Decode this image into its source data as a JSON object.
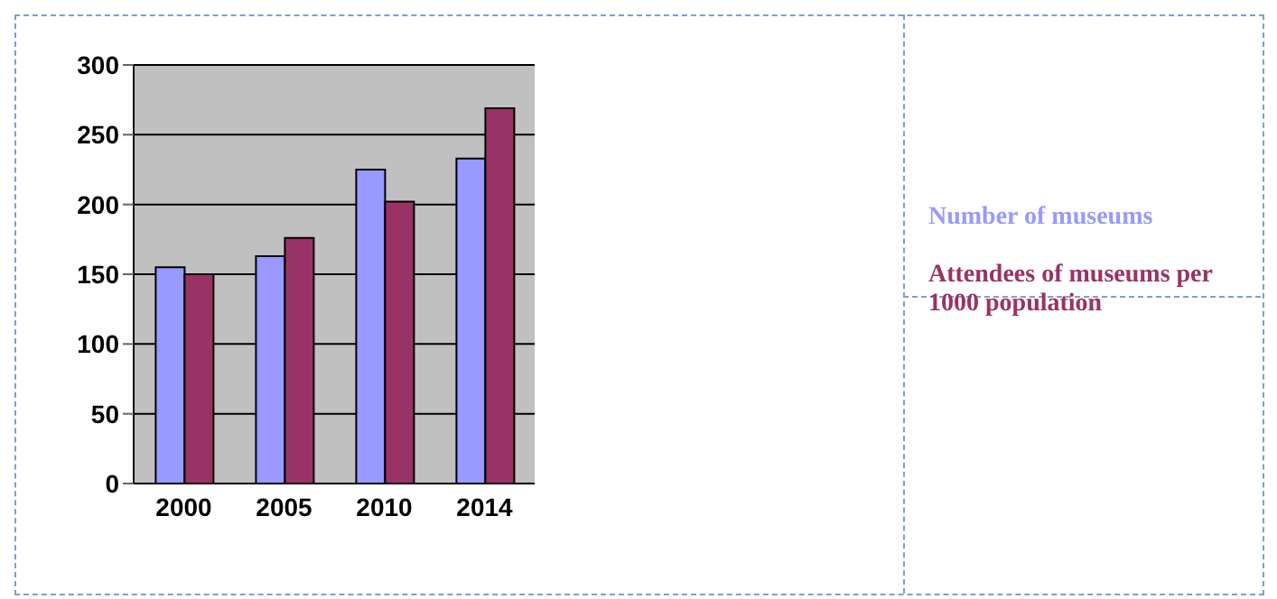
{
  "chart_data": {
    "type": "bar",
    "categories": [
      "2000",
      "2005",
      "2010",
      "2014"
    ],
    "series": [
      {
        "name": "Number of museums",
        "color": "#9999ff",
        "values": [
          155,
          163,
          225,
          233
        ]
      },
      {
        "name": "Attendees of museums per 1000  population",
        "color": "#993366",
        "values": [
          150,
          176,
          202,
          269
        ]
      }
    ],
    "ylim": [
      0,
      300
    ],
    "yticks": [
      0,
      50,
      100,
      150,
      200,
      250,
      300
    ],
    "grid": "y",
    "legend": "right"
  }
}
